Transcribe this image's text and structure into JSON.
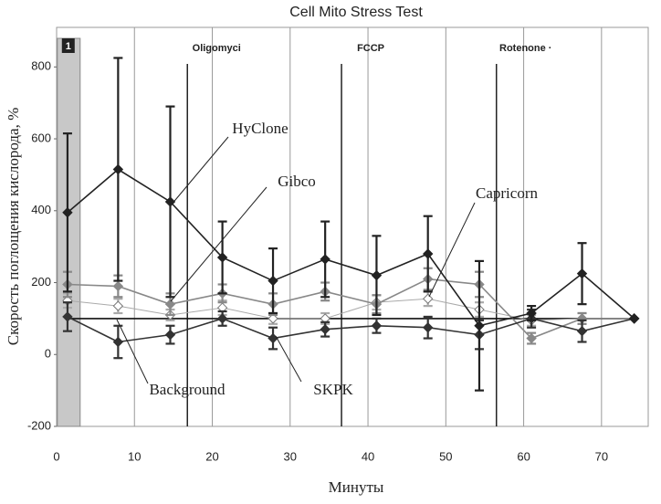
{
  "chart_data": {
    "type": "line",
    "title": "Cell Mito Stress Test",
    "x_label": "Минуты",
    "y_label": "Скорость поглощения кислорода, %",
    "x": [
      1.4,
      7.9,
      14.6,
      21.3,
      27.8,
      34.5,
      41.1,
      47.7,
      54.3,
      61,
      67.5,
      74.2
    ],
    "series": [
      {
        "name": "HyClone",
        "color": "#222222",
        "values": [
          395,
          515,
          425,
          270,
          205,
          265,
          220,
          280,
          80,
          115,
          225,
          100
        ],
        "errors": [
          220,
          310,
          265,
          100,
          90,
          105,
          110,
          105,
          180,
          20,
          85,
          null
        ]
      },
      {
        "name": "Gibco",
        "color": "#888888",
        "values": [
          195,
          190,
          140,
          170,
          140,
          175,
          140,
          210,
          195,
          45,
          100,
          100
        ],
        "errors": [
          35,
          30,
          30,
          25,
          30,
          25,
          25,
          30,
          35,
          15,
          15,
          null
        ]
      },
      {
        "name": "Capricorn",
        "color": "#aaaaaa",
        "values": [
          150,
          135,
          110,
          130,
          100,
          100,
          145,
          155,
          125,
          95,
          100,
          100
        ],
        "errors": [
          20,
          20,
          15,
          20,
          15,
          15,
          20,
          20,
          20,
          15,
          15,
          null
        ]
      },
      {
        "name": "Background",
        "color": "#111111",
        "values": [
          100,
          100,
          100,
          100,
          100,
          100,
          100,
          100,
          100,
          100,
          100,
          100
        ],
        "errors": [
          null,
          null,
          null,
          null,
          null,
          null,
          null,
          null,
          null,
          null,
          null,
          null
        ]
      },
      {
        "name": "SKPK",
        "color": "#333333",
        "values": [
          105,
          35,
          55,
          100,
          45,
          70,
          80,
          75,
          55,
          100,
          65,
          100
        ],
        "errors": [
          40,
          45,
          25,
          20,
          30,
          20,
          20,
          30,
          40,
          25,
          30,
          null
        ]
      }
    ],
    "injections": [
      {
        "label": "1",
        "x": 1.5
      },
      {
        "label": "Oligomyci",
        "x": 16.8
      },
      {
        "label": "FCCP",
        "x": 36.6
      },
      {
        "label": "Rotenone ·",
        "x": 56.5
      }
    ],
    "xlim": [
      0,
      76
    ],
    "ylim": [
      -200,
      910
    ],
    "xticks": [
      0,
      10,
      20,
      30,
      40,
      50,
      60,
      70
    ],
    "yticks": [
      -200,
      0,
      200,
      400,
      600,
      800
    ],
    "grid": true
  }
}
